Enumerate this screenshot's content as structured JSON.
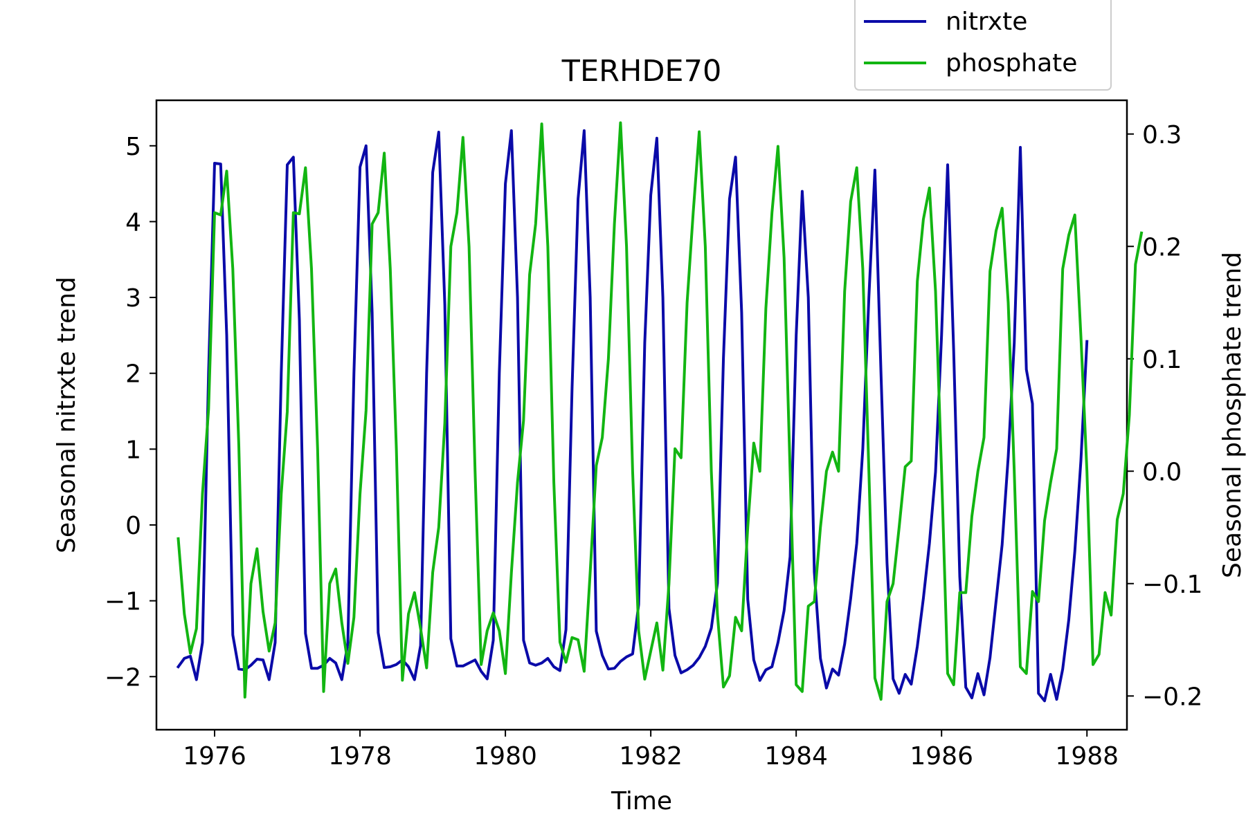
{
  "chart_data": {
    "type": "line",
    "title": "TERHDE70",
    "xlabel": "Time",
    "ylabel_left": "Seasonal nitrxte trend",
    "ylabel_right": "Seasonal phosphate trend",
    "xlim": [
      1975.2,
      1988.55
    ],
    "ylim_left": [
      -2.7,
      5.6
    ],
    "ylim_right": [
      -0.23,
      0.33
    ],
    "x_ticks": [
      1976,
      1978,
      1980,
      1982,
      1984,
      1986,
      1988
    ],
    "x_tick_labels": [
      "1976",
      "1978",
      "1980",
      "1982",
      "1984",
      "1986",
      "1988"
    ],
    "y_left_ticks": [
      -2,
      -1,
      0,
      1,
      2,
      3,
      4,
      5
    ],
    "y_left_tick_labels": [
      "−2",
      "−1",
      "0",
      "1",
      "2",
      "3",
      "4",
      "5"
    ],
    "y_right_ticks": [
      -0.2,
      -0.1,
      0.0,
      0.1,
      0.2,
      0.3
    ],
    "y_right_tick_labels": [
      "−0.2",
      "−0.1",
      "0.0",
      "0.1",
      "0.2",
      "0.3"
    ],
    "grid": false,
    "legend_position": "top-right",
    "start_year": 1975.5,
    "step_years": 0.0833333,
    "series": [
      {
        "name": "nitrxte",
        "axis": "left",
        "color": "#0a0aa8",
        "values": [
          -1.87,
          -1.76,
          -1.73,
          -2.04,
          -1.55,
          2.0,
          4.77,
          4.76,
          2.5,
          -1.45,
          -1.9,
          -1.91,
          -1.85,
          -1.77,
          -1.78,
          -2.04,
          -1.55,
          2.0,
          4.75,
          4.85,
          2.7,
          -1.43,
          -1.89,
          -1.89,
          -1.85,
          -1.76,
          -1.82,
          -2.04,
          -1.56,
          2.0,
          4.72,
          5.0,
          2.8,
          -1.42,
          -1.88,
          -1.87,
          -1.84,
          -1.78,
          -1.87,
          -2.04,
          -1.59,
          2.0,
          4.65,
          5.18,
          2.9,
          -1.5,
          -1.86,
          -1.86,
          -1.82,
          -1.78,
          -1.93,
          -2.03,
          -1.52,
          2.0,
          4.5,
          5.2,
          3.0,
          -1.52,
          -1.82,
          -1.85,
          -1.82,
          -1.76,
          -1.87,
          -1.92,
          -1.38,
          1.8,
          4.3,
          5.2,
          3.0,
          -1.4,
          -1.72,
          -1.9,
          -1.89,
          -1.8,
          -1.74,
          -1.7,
          -1.05,
          2.4,
          4.35,
          5.1,
          3.0,
          -1.1,
          -1.72,
          -1.95,
          -1.91,
          -1.85,
          -1.75,
          -1.6,
          -1.36,
          -0.77,
          2.2,
          4.3,
          4.85,
          2.8,
          -0.98,
          -1.78,
          -2.05,
          -1.91,
          -1.87,
          -1.55,
          -1.13,
          -0.42,
          2.5,
          4.4,
          3.0,
          -0.62,
          -1.76,
          -2.15,
          -1.9,
          -1.98,
          -1.57,
          -0.97,
          -0.24,
          1.0,
          3.0,
          4.68,
          2.0,
          -0.5,
          -2.03,
          -2.22,
          -1.97,
          -2.1,
          -1.6,
          -0.97,
          -0.24,
          0.7,
          2.5,
          4.75,
          2.3,
          -0.68,
          -2.14,
          -2.28,
          -1.96,
          -2.24,
          -1.75,
          -1.0,
          -0.26,
          0.9,
          2.4,
          4.98,
          2.05,
          1.6,
          -2.22,
          -2.32,
          -1.97,
          -2.3,
          -1.9,
          -1.25,
          -0.35,
          0.85,
          2.42
        ]
      },
      {
        "name": "phosphate",
        "axis": "right",
        "color": "#12b512",
        "values": [
          -0.06,
          -0.127,
          -0.162,
          -0.14,
          -0.02,
          0.055,
          0.23,
          0.228,
          0.267,
          0.18,
          0.023,
          -0.201,
          -0.1,
          -0.069,
          -0.125,
          -0.16,
          -0.135,
          -0.02,
          0.053,
          0.23,
          0.229,
          0.27,
          0.18,
          0.02,
          -0.196,
          -0.1,
          -0.087,
          -0.135,
          -0.171,
          -0.13,
          -0.02,
          0.054,
          0.22,
          0.23,
          0.283,
          0.18,
          0.02,
          -0.186,
          -0.127,
          -0.108,
          -0.14,
          -0.175,
          -0.09,
          -0.05,
          0.043,
          0.2,
          0.23,
          0.297,
          0.2,
          0.0,
          -0.172,
          -0.142,
          -0.126,
          -0.142,
          -0.18,
          -0.09,
          -0.01,
          0.045,
          0.175,
          0.22,
          0.309,
          0.2,
          -0.01,
          -0.152,
          -0.17,
          -0.148,
          -0.15,
          -0.178,
          -0.09,
          0.005,
          0.03,
          0.1,
          0.22,
          0.31,
          0.2,
          0.0,
          -0.142,
          -0.185,
          -0.16,
          -0.135,
          -0.177,
          -0.1,
          0.02,
          0.012,
          0.15,
          0.23,
          0.302,
          0.2,
          0.0,
          -0.127,
          -0.192,
          -0.182,
          -0.13,
          -0.142,
          -0.05,
          0.025,
          0.0,
          0.145,
          0.23,
          0.289,
          0.19,
          0.0,
          -0.19,
          -0.196,
          -0.12,
          -0.116,
          -0.05,
          0.0,
          0.017,
          0.0,
          0.16,
          0.24,
          0.27,
          0.18,
          0.0,
          -0.184,
          -0.203,
          -0.116,
          -0.1,
          -0.05,
          0.004,
          0.009,
          0.169,
          0.224,
          0.252,
          0.16,
          0.0,
          -0.18,
          -0.19,
          -0.108,
          -0.108,
          -0.04,
          0.0,
          0.03,
          0.178,
          0.214,
          0.234,
          0.15,
          0.0,
          -0.174,
          -0.18,
          -0.107,
          -0.116,
          -0.044,
          -0.01,
          0.02,
          0.18,
          0.21,
          0.228,
          0.12,
          0.0,
          -0.172,
          -0.163,
          -0.108,
          -0.128,
          -0.043,
          -0.02,
          0.05,
          0.184,
          0.212
        ]
      }
    ]
  }
}
